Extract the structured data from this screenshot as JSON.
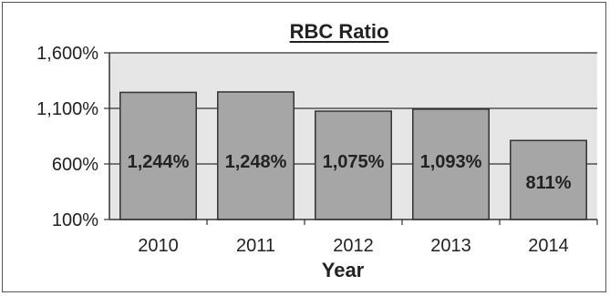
{
  "chart_data": {
    "type": "bar",
    "title": "RBC Ratio",
    "xlabel": "Year",
    "ylabel": "",
    "categories": [
      "2010",
      "2011",
      "2012",
      "2013",
      "2014"
    ],
    "values": [
      1244,
      1248,
      1075,
      1093,
      811
    ],
    "data_labels": [
      "1,244%",
      "1,248%",
      "1,075%",
      "1,093%",
      "811%"
    ],
    "yticks": [
      100,
      600,
      1100,
      1600
    ],
    "ytick_labels": [
      "100%",
      "600%",
      "1,100%",
      "1,600%"
    ],
    "ylim": [
      100,
      1600
    ],
    "grid": true,
    "legend": "none",
    "colors": {
      "bar": "#a6a6a6",
      "bar_edge": "#333333",
      "plot_bg": "#e6e6e6",
      "gridline": "#333333"
    }
  }
}
